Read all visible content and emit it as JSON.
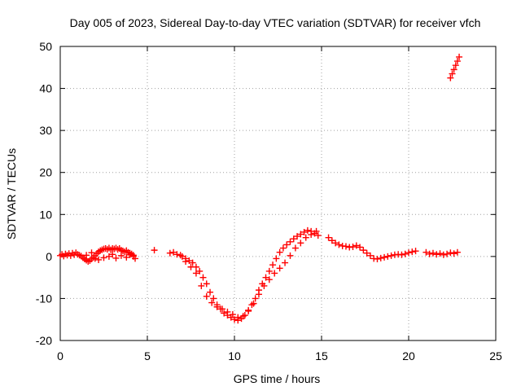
{
  "chart_data": {
    "type": "scatter",
    "title": "Day 005 of 2023, Sidereal Day-to-day VTEC variation (SDTVAR) for receiver vfch",
    "xlabel": "GPS time / hours",
    "ylabel": "SDTVAR / TECUs",
    "xlim": [
      0,
      25
    ],
    "ylim": [
      -20,
      50
    ],
    "xticks": [
      0,
      5,
      10,
      15,
      20,
      25
    ],
    "yticks": [
      -20,
      -10,
      0,
      10,
      20,
      30,
      40,
      50
    ],
    "xtick_labels": [
      "0",
      "5",
      "10",
      "15",
      "20",
      "25"
    ],
    "ytick_labels": [
      "-20",
      "-10",
      "0",
      "10",
      "20",
      "30",
      "40",
      "50"
    ],
    "grid": true,
    "marker": "+",
    "color": "#ff0000",
    "series": [
      {
        "name": "SDTVAR",
        "x": [
          0.0,
          0.1,
          0.2,
          0.3,
          0.4,
          0.5,
          0.6,
          0.7,
          0.8,
          0.9,
          1.0,
          1.1,
          1.2,
          1.3,
          1.4,
          1.5,
          1.6,
          1.7,
          1.8,
          1.9,
          2.0,
          2.1,
          2.2,
          2.3,
          2.4,
          2.5,
          2.6,
          2.7,
          2.8,
          2.9,
          3.0,
          3.1,
          3.2,
          3.3,
          3.4,
          3.5,
          3.6,
          3.7,
          3.8,
          3.9,
          4.0,
          4.1,
          4.2,
          4.3,
          1.5,
          1.8,
          2.0,
          2.2,
          2.5,
          2.8,
          3.0,
          3.2,
          3.5,
          3.8,
          4.0,
          4.2,
          5.4,
          6.3,
          6.5,
          6.7,
          6.9,
          7.0,
          7.2,
          7.4,
          7.6,
          7.8,
          8.0,
          8.2,
          8.4,
          8.6,
          8.8,
          9.0,
          9.2,
          9.4,
          9.6,
          9.8,
          10.0,
          10.2,
          10.4,
          10.6,
          10.8,
          11.0,
          11.2,
          11.4,
          11.6,
          11.8,
          12.0,
          12.2,
          12.4,
          12.6,
          12.8,
          13.0,
          13.2,
          13.4,
          13.6,
          13.8,
          14.0,
          14.2,
          14.4,
          14.6,
          14.8,
          7.2,
          7.5,
          7.8,
          8.1,
          8.4,
          8.7,
          9.0,
          9.3,
          9.6,
          9.9,
          10.2,
          10.5,
          10.8,
          11.1,
          11.4,
          11.7,
          12.0,
          12.3,
          12.6,
          12.9,
          13.2,
          13.5,
          13.8,
          14.1,
          14.4,
          14.7,
          15.4,
          15.6,
          15.8,
          16.0,
          16.2,
          16.4,
          16.6,
          16.8,
          17.0,
          17.2,
          17.4,
          17.6,
          17.8,
          18.0,
          18.2,
          18.4,
          18.6,
          18.8,
          19.0,
          19.2,
          19.4,
          19.6,
          19.8,
          20.0,
          20.2,
          20.4,
          21.0,
          21.2,
          21.4,
          21.6,
          21.8,
          22.0,
          22.2,
          22.4,
          22.6,
          22.8,
          22.4,
          22.5,
          22.6,
          22.7,
          22.8,
          22.9
        ],
        "y": [
          0.2,
          0.5,
          0.1,
          0.6,
          0.3,
          0.7,
          0.2,
          0.8,
          0.4,
          0.9,
          0.5,
          0.3,
          0.1,
          -0.3,
          -0.6,
          -0.9,
          -1.2,
          -1.0,
          -0.6,
          -0.2,
          0.2,
          0.7,
          1.1,
          1.4,
          1.6,
          1.8,
          1.9,
          1.7,
          2.0,
          1.6,
          1.9,
          1.8,
          2.0,
          1.7,
          1.9,
          1.5,
          1.3,
          1.1,
          1.4,
          1.0,
          0.8,
          0.6,
          0.3,
          -0.5,
          0.3,
          0.9,
          -0.5,
          -0.8,
          -0.3,
          0.0,
          0.5,
          -0.4,
          0.2,
          -0.2,
          0.4,
          0.0,
          1.5,
          0.8,
          1.0,
          0.5,
          0.3,
          0.0,
          -0.5,
          -1.0,
          -1.5,
          -2.5,
          -3.5,
          -5.0,
          -6.5,
          -8.5,
          -10.0,
          -11.5,
          -12.5,
          -13.5,
          -14.0,
          -14.5,
          -15.0,
          -15.2,
          -14.8,
          -14.0,
          -13.0,
          -11.5,
          -10.0,
          -8.0,
          -6.5,
          -5.0,
          -3.5,
          -2.0,
          -0.5,
          1.0,
          2.0,
          2.8,
          3.5,
          4.2,
          4.8,
          5.3,
          5.8,
          6.2,
          6.0,
          5.5,
          5.0,
          -1.2,
          -2.5,
          -4.0,
          -7.0,
          -9.5,
          -11.0,
          -12.0,
          -12.5,
          -13.2,
          -13.8,
          -14.5,
          -14.2,
          -12.8,
          -11.2,
          -9.0,
          -7.0,
          -5.5,
          -4.0,
          -2.8,
          -1.5,
          0.2,
          2.0,
          3.2,
          4.5,
          5.2,
          6.0,
          4.5,
          3.8,
          3.2,
          2.8,
          2.5,
          2.4,
          2.2,
          2.3,
          2.6,
          2.2,
          1.5,
          0.8,
          0.2,
          -0.5,
          -0.6,
          -0.4,
          -0.2,
          0.0,
          0.2,
          0.4,
          0.5,
          0.4,
          0.6,
          0.9,
          1.1,
          1.3,
          1.0,
          0.6,
          0.8,
          0.5,
          0.7,
          0.4,
          0.6,
          0.9,
          0.7,
          1.0,
          42.5,
          43.5,
          44.5,
          45.5,
          46.5,
          47.5
        ]
      }
    ]
  }
}
